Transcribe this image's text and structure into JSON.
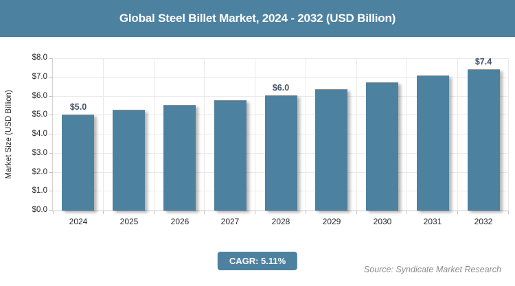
{
  "header": {
    "title": "Global Steel Billet Market, 2024 - 2032 (USD Billion)"
  },
  "chart_data": {
    "type": "bar",
    "title": "Global Steel Billet Market, 2024 - 2032 (USD Billion)",
    "xlabel": "",
    "ylabel": "Market Size (USD Billion)",
    "categories": [
      "2024",
      "2025",
      "2026",
      "2027",
      "2028",
      "2029",
      "2030",
      "2031",
      "2032"
    ],
    "values": [
      5.0,
      5.25,
      5.5,
      5.75,
      6.0,
      6.35,
      6.7,
      7.05,
      7.4
    ],
    "bar_labels": [
      "$5.0",
      "",
      "",
      "",
      "$6.0",
      "",
      "",
      "",
      "$7.4"
    ],
    "ylim": [
      0,
      8
    ],
    "y_tick_labels": [
      "$0.0",
      "$1.0",
      "$2.0",
      "$3.0",
      "$4.0",
      "$5.0",
      "$6.0",
      "$7.0",
      "$8.0"
    ],
    "grid": true,
    "legend": false,
    "colors": {
      "bar": "#4d81a0",
      "header_bg": "#4d81a0",
      "badge_bg": "#4d81a0",
      "value_label": "#44546a",
      "axis_text": "#262626",
      "gridline": "#e9e9e9",
      "source_text": "#8c8c8c"
    }
  },
  "footer": {
    "cagr_label": "CAGR: 5.11%",
    "source": "Source: Syndicate Market Research"
  }
}
